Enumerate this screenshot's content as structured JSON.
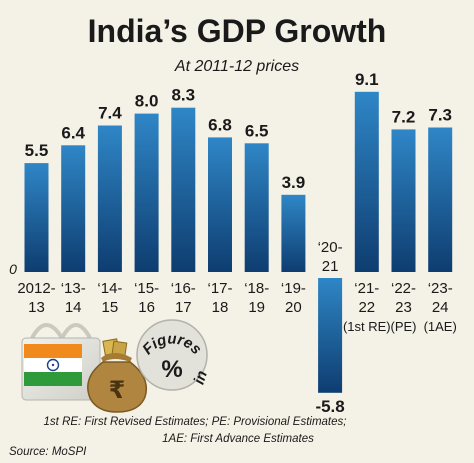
{
  "chart_data": {
    "type": "bar",
    "title": "India’s GDP Growth",
    "subtitle": "At 2011-12 prices",
    "zero_label": "0",
    "categories": [
      [
        "2012-",
        "13"
      ],
      [
        "‘13-",
        "14"
      ],
      [
        "‘14-",
        "15"
      ],
      [
        "‘15-",
        "16"
      ],
      [
        "‘16-",
        "17"
      ],
      [
        "‘17-",
        "18"
      ],
      [
        "‘18-",
        "19"
      ],
      [
        "‘19-",
        "20"
      ],
      [
        "‘20-",
        "21"
      ],
      [
        "‘21-",
        "22",
        "(1st RE)"
      ],
      [
        "‘22-",
        "23",
        "(PE)"
      ],
      [
        "‘23-",
        "24",
        "(1AE)"
      ]
    ],
    "values": [
      5.5,
      6.4,
      7.4,
      8.0,
      8.3,
      6.8,
      6.5,
      3.9,
      -5.8,
      9.1,
      7.2,
      7.3
    ],
    "value_labels": [
      "5.5",
      "6.4",
      "7.4",
      "8.0",
      "8.3",
      "6.8",
      "6.5",
      "3.9",
      "-5.8",
      "9.1",
      "7.2",
      "7.3"
    ],
    "ylim": [
      -5.8,
      9.1
    ],
    "grid": false,
    "legend": "none",
    "colors": {
      "bar_top": "#2f86c6",
      "bar_bottom": "#0e3d70",
      "background": "#f4f1e6"
    }
  },
  "illustration": {
    "badge_text": [
      "Figures",
      "in"
    ],
    "badge_symbol": "%"
  },
  "footnotes": [
    "1st RE: First Revised Estimates; PE: Provisional Estimates;",
    "1AE: First Advance Estimates"
  ],
  "source": "Source: MoSPI"
}
